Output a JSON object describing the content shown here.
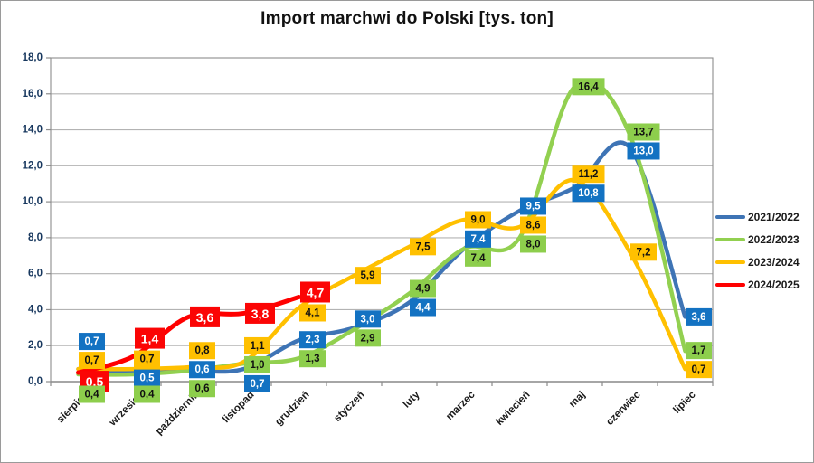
{
  "window": {
    "background": "#FFFFFF",
    "border_color": "#9A9A9A"
  },
  "chart_data": {
    "type": "line",
    "title": "Import marchwi do Polski [tys. ton]",
    "categories": [
      "sierpień",
      "wrzesień",
      "październik",
      "listopad",
      "grudzień",
      "styczeń",
      "luty",
      "marzec",
      "kwiecień",
      "maj",
      "czerwiec",
      "lipiec"
    ],
    "series": [
      {
        "name": "2021/2022",
        "color": "#3E74B5",
        "label_bg": "#1372C2",
        "label_text": "#FFFFFF",
        "emphasis": false,
        "values": [
          0.7,
          0.5,
          0.6,
          0.7,
          2.3,
          3.0,
          4.4,
          7.4,
          9.5,
          10.8,
          13.0,
          3.6
        ]
      },
      {
        "name": "2022/2023",
        "color": "#92D050",
        "label_bg": "#8DCE4C",
        "label_text": "#111111",
        "emphasis": false,
        "values": [
          0.4,
          0.4,
          0.6,
          1.0,
          1.3,
          2.9,
          4.9,
          7.4,
          8.0,
          16.4,
          13.7,
          1.7
        ]
      },
      {
        "name": "2023/2024",
        "color": "#FFC000",
        "label_bg": "#FFC000",
        "label_text": "#111111",
        "emphasis": false,
        "values": [
          0.7,
          0.7,
          0.8,
          1.1,
          4.1,
          5.9,
          7.5,
          9.0,
          8.6,
          11.2,
          7.2,
          0.7
        ]
      },
      {
        "name": "2024/2025",
        "color": "#FF0000",
        "label_bg": "#FB0505",
        "label_text": "#FFFFFF",
        "emphasis": true,
        "values": [
          0.5,
          1.4,
          3.6,
          3.8,
          4.7,
          null,
          null,
          null,
          null,
          null,
          null,
          null
        ]
      }
    ],
    "ylim": [
      0,
      18
    ],
    "ytick_labels": [
      "0,0",
      "2,0",
      "4,0",
      "6,0",
      "8,0",
      "10,0",
      "12,0",
      "14,0",
      "16,0",
      "18,0"
    ],
    "grid": true,
    "smooth_lines": true,
    "data_labels": true,
    "decimal_separator": ",",
    "legend_position": "right"
  },
  "styles": {
    "grid_color": "#B3B3B3",
    "axis_color": "#8C8C8C",
    "ytick_color": "#17375E",
    "xtick_color": "#1A1A1A"
  }
}
